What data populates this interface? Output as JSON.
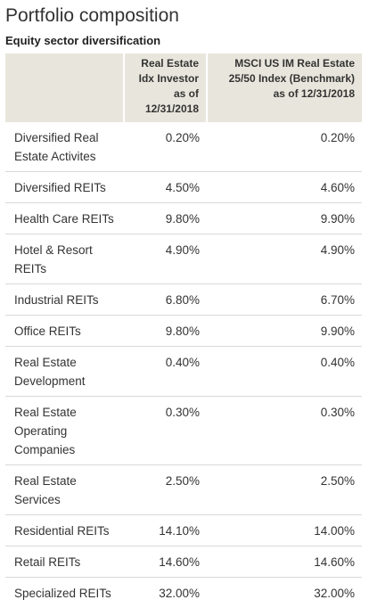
{
  "title": "Portfolio composition",
  "subtitle": "Equity sector diversification",
  "columns": {
    "fund": "Real Estate Idx Investor as of 12/31/2018",
    "benchmark": "MSCI US IM Real Estate 25/50 Index (Benchmark) as of 12/31/2018"
  },
  "rows": [
    {
      "sector": "Diversified Real Estate Activites",
      "fund": "0.20%",
      "benchmark": "0.20%"
    },
    {
      "sector": "Diversified REITs",
      "fund": "4.50%",
      "benchmark": "4.60%"
    },
    {
      "sector": "Health Care REITs",
      "fund": "9.80%",
      "benchmark": "9.90%"
    },
    {
      "sector": "Hotel & Resort REITs",
      "fund": "4.90%",
      "benchmark": "4.90%"
    },
    {
      "sector": "Industrial REITs",
      "fund": "6.80%",
      "benchmark": "6.70%"
    },
    {
      "sector": "Office REITs",
      "fund": "9.80%",
      "benchmark": "9.90%"
    },
    {
      "sector": "Real Estate Development",
      "fund": "0.40%",
      "benchmark": "0.40%"
    },
    {
      "sector": "Real Estate Operating Companies",
      "fund": "0.30%",
      "benchmark": "0.30%"
    },
    {
      "sector": "Real Estate Services",
      "fund": "2.50%",
      "benchmark": "2.50%"
    },
    {
      "sector": "Residential REITs",
      "fund": "14.10%",
      "benchmark": "14.00%"
    },
    {
      "sector": "Retail REITs",
      "fund": "14.60%",
      "benchmark": "14.60%"
    },
    {
      "sector": "Specialized REITs",
      "fund": "32.00%",
      "benchmark": "32.00%"
    }
  ]
}
